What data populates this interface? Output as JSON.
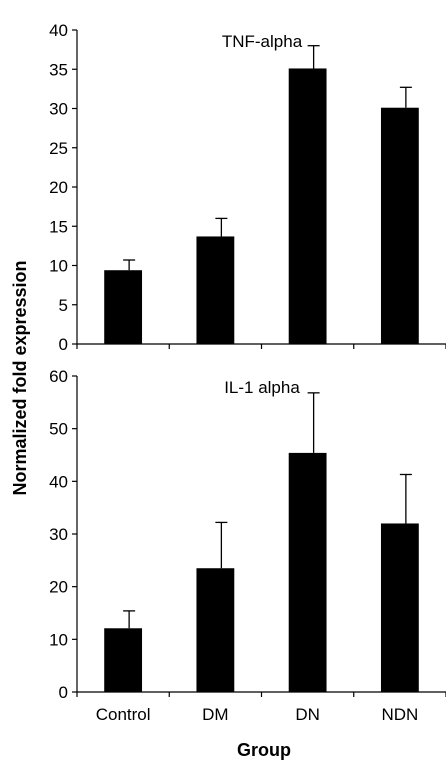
{
  "figure": {
    "ylabel": "Normalized fold expression",
    "xlabel": "Group"
  },
  "chart_data": [
    {
      "type": "bar",
      "title": "TNF-alpha",
      "categories": [
        "Control",
        "DM",
        "DN",
        "NDN"
      ],
      "values": [
        9.4,
        13.7,
        35.1,
        30.1
      ],
      "errors": [
        1.3,
        2.3,
        2.9,
        2.6
      ],
      "ylim": [
        0,
        40
      ],
      "yticks": [
        0,
        5,
        10,
        15,
        20,
        25,
        30,
        35,
        40
      ],
      "bar_color": "#000000",
      "grid": false
    },
    {
      "type": "bar",
      "title": "IL-1 alpha",
      "categories": [
        "Control",
        "DM",
        "DN",
        "NDN"
      ],
      "values": [
        12.1,
        23.5,
        45.4,
        32.0
      ],
      "errors": [
        3.3,
        8.7,
        11.4,
        9.3
      ],
      "ylim": [
        0,
        60
      ],
      "yticks": [
        0,
        10,
        20,
        30,
        40,
        50,
        60
      ],
      "bar_color": "#000000",
      "grid": false
    }
  ]
}
